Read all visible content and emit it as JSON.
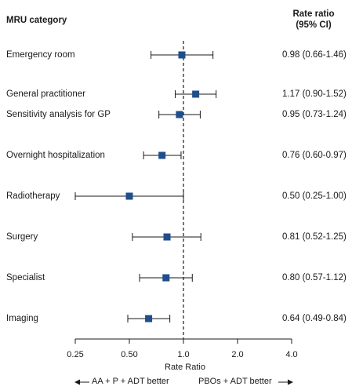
{
  "chart_data": {
    "type": "forest",
    "column_header": "MRU category",
    "ratio_header_line1": "Rate ratio",
    "ratio_header_line2": "(95% CI)",
    "rows": [
      {
        "label": "Emergency room",
        "estimate": 0.98,
        "lower": 0.66,
        "upper": 1.46,
        "ci_text": "0.98 (0.66-1.46)"
      },
      {
        "label": "General practitioner",
        "estimate": 1.17,
        "lower": 0.9,
        "upper": 1.52,
        "ci_text": "1.17 (0.90-1.52)"
      },
      {
        "label": "Sensitivity analysis for GP",
        "estimate": 0.95,
        "lower": 0.73,
        "upper": 1.24,
        "ci_text": "0.95 (0.73-1.24)"
      },
      {
        "label": "Overnight hospitalization",
        "estimate": 0.76,
        "lower": 0.6,
        "upper": 0.97,
        "ci_text": "0.76 (0.60-0.97)"
      },
      {
        "label": "Radiotherapy",
        "estimate": 0.5,
        "lower": 0.25,
        "upper": 1.0,
        "ci_text": "0.50 (0.25-1.00)"
      },
      {
        "label": "Surgery",
        "estimate": 0.81,
        "lower": 0.52,
        "upper": 1.25,
        "ci_text": "0.81 (0.52-1.25)"
      },
      {
        "label": "Specialist",
        "estimate": 0.8,
        "lower": 0.57,
        "upper": 1.12,
        "ci_text": "0.80 (0.57-1.12)"
      },
      {
        "label": "Imaging",
        "estimate": 0.64,
        "lower": 0.49,
        "upper": 0.84,
        "ci_text": "0.64 (0.49-0.84)"
      }
    ],
    "x_scale": "log",
    "xlim": [
      0.25,
      4.0
    ],
    "reference_line": 1.0,
    "x_ticks": [
      {
        "value": 0.25,
        "label": "0.25"
      },
      {
        "value": 0.5,
        "label": "0.50"
      },
      {
        "value": 1.0,
        "label": "1.0"
      },
      {
        "value": 2.0,
        "label": "2.0"
      },
      {
        "value": 4.0,
        "label": "4.0"
      }
    ],
    "xlabel": "Rate Ratio",
    "favors_left": "AA + P + ADT better",
    "favors_right": "PBOs + ADT better",
    "marker_color": "#1f4e8c",
    "line_color": "#1a1a1a"
  }
}
